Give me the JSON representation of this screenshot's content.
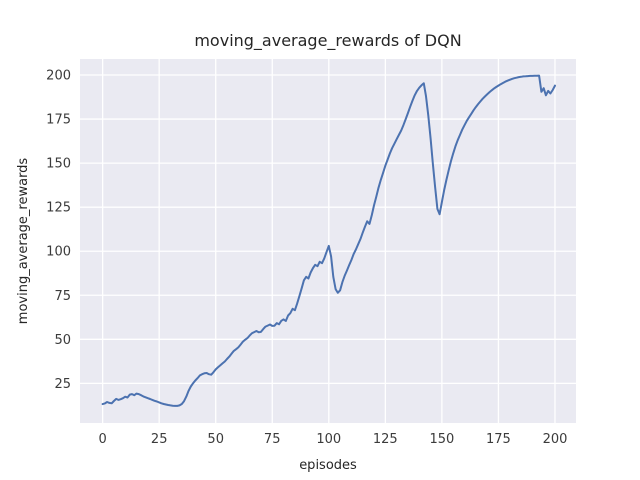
{
  "figure": {
    "background": "#ffffff"
  },
  "chart_data": {
    "type": "line",
    "title": "moving_average_rewards of DQN",
    "xlabel": "episodes",
    "ylabel": "moving_average_rewards",
    "xticks": [
      0,
      25,
      50,
      75,
      100,
      125,
      150,
      175,
      200
    ],
    "yticks": [
      25,
      50,
      75,
      100,
      125,
      150,
      175,
      200
    ],
    "xlim": [
      -10,
      209.3
    ],
    "ylim": [
      2.5,
      209.1
    ],
    "grid": true,
    "legend": "none",
    "style": {
      "plot_bg": "#eaeaf2",
      "grid_color": "#ffffff",
      "line_color": "#4c72b0",
      "line_width": 2,
      "title_color": "#262626",
      "tick_color": "#3b3b3b"
    },
    "series": [
      {
        "name": "moving_average_rewards",
        "points": [
          [
            0,
            13.2
          ],
          [
            1,
            13.6
          ],
          [
            2,
            14.4
          ],
          [
            3,
            13.9
          ],
          [
            4,
            13.7
          ],
          [
            5,
            15.0
          ],
          [
            6,
            16.2
          ],
          [
            7,
            15.6
          ],
          [
            8,
            16.0
          ],
          [
            9,
            16.6
          ],
          [
            10,
            17.4
          ],
          [
            11,
            17.0
          ],
          [
            12,
            18.6
          ],
          [
            13,
            18.9
          ],
          [
            14,
            18.3
          ],
          [
            15,
            19.2
          ],
          [
            16,
            18.9
          ],
          [
            17,
            18.3
          ],
          [
            18,
            17.6
          ],
          [
            19,
            17.1
          ],
          [
            20,
            16.6
          ],
          [
            21,
            16.1
          ],
          [
            22,
            15.6
          ],
          [
            23,
            15.1
          ],
          [
            24,
            14.7
          ],
          [
            25,
            14.2
          ],
          [
            26,
            13.7
          ],
          [
            27,
            13.3
          ],
          [
            28,
            13.0
          ],
          [
            29,
            12.7
          ],
          [
            30,
            12.5
          ],
          [
            31,
            12.3
          ],
          [
            32,
            12.2
          ],
          [
            33,
            12.2
          ],
          [
            34,
            12.5
          ],
          [
            35,
            13.3
          ],
          [
            36,
            14.9
          ],
          [
            37,
            17.5
          ],
          [
            38,
            20.8
          ],
          [
            39,
            23.2
          ],
          [
            40,
            25.1
          ],
          [
            41,
            26.6
          ],
          [
            42,
            28.0
          ],
          [
            43,
            29.5
          ],
          [
            44,
            30.2
          ],
          [
            45,
            30.7
          ],
          [
            46,
            30.9
          ],
          [
            47,
            30.2
          ],
          [
            48,
            29.9
          ],
          [
            49,
            31.3
          ],
          [
            50,
            32.9
          ],
          [
            51,
            34.1
          ],
          [
            52,
            35.2
          ],
          [
            53,
            36.3
          ],
          [
            54,
            37.4
          ],
          [
            55,
            38.8
          ],
          [
            56,
            40.2
          ],
          [
            57,
            41.8
          ],
          [
            58,
            43.4
          ],
          [
            59,
            44.4
          ],
          [
            60,
            45.4
          ],
          [
            61,
            47.0
          ],
          [
            62,
            48.6
          ],
          [
            63,
            49.7
          ],
          [
            64,
            50.7
          ],
          [
            65,
            52.1
          ],
          [
            66,
            53.4
          ],
          [
            67,
            54.1
          ],
          [
            68,
            54.7
          ],
          [
            69,
            54.0
          ],
          [
            70,
            54.2
          ],
          [
            71,
            55.8
          ],
          [
            72,
            57.2
          ],
          [
            73,
            57.8
          ],
          [
            74,
            58.4
          ],
          [
            75,
            57.6
          ],
          [
            76,
            57.7
          ],
          [
            77,
            59.2
          ],
          [
            78,
            58.5
          ],
          [
            79,
            60.5
          ],
          [
            80,
            61.3
          ],
          [
            81,
            60.4
          ],
          [
            82,
            63.5
          ],
          [
            83,
            64.8
          ],
          [
            84,
            67.3
          ],
          [
            85,
            66.5
          ],
          [
            86,
            70.2
          ],
          [
            87,
            74.5
          ],
          [
            88,
            79.0
          ],
          [
            89,
            83.5
          ],
          [
            90,
            85.5
          ],
          [
            91,
            84.5
          ],
          [
            92,
            88.0
          ],
          [
            93,
            90.5
          ],
          [
            94,
            92.3
          ],
          [
            95,
            91.5
          ],
          [
            96,
            94.0
          ],
          [
            97,
            93.2
          ],
          [
            98,
            96.0
          ],
          [
            99,
            99.5
          ],
          [
            100,
            103.0
          ],
          [
            101,
            97.0
          ],
          [
            102,
            85.5
          ],
          [
            103,
            78.5
          ],
          [
            104,
            76.4
          ],
          [
            105,
            77.8
          ],
          [
            106,
            82.5
          ],
          [
            107,
            86.0
          ],
          [
            108,
            89.0
          ],
          [
            109,
            92.0
          ],
          [
            110,
            95.0
          ],
          [
            111,
            98.5
          ],
          [
            112,
            101.0
          ],
          [
            113,
            104.0
          ],
          [
            114,
            107.0
          ],
          [
            115,
            110.5
          ],
          [
            116,
            114.0
          ],
          [
            117,
            117.0
          ],
          [
            118,
            115.5
          ],
          [
            119,
            120.5
          ],
          [
            120,
            126.0
          ],
          [
            121,
            131.0
          ],
          [
            122,
            136.0
          ],
          [
            123,
            140.5
          ],
          [
            124,
            144.5
          ],
          [
            125,
            148.5
          ],
          [
            126,
            152.0
          ],
          [
            127,
            155.5
          ],
          [
            128,
            158.5
          ],
          [
            129,
            161.0
          ],
          [
            130,
            163.5
          ],
          [
            131,
            166.0
          ],
          [
            132,
            168.5
          ],
          [
            133,
            171.5
          ],
          [
            134,
            175.0
          ],
          [
            135,
            178.5
          ],
          [
            136,
            182.0
          ],
          [
            137,
            185.5
          ],
          [
            138,
            188.5
          ],
          [
            139,
            191.0
          ],
          [
            140,
            192.8
          ],
          [
            141,
            194.2
          ],
          [
            142,
            195.3
          ],
          [
            143,
            188.0
          ],
          [
            144,
            177.0
          ],
          [
            145,
            164.0
          ],
          [
            146,
            150.0
          ],
          [
            147,
            136.5
          ],
          [
            148,
            124.0
          ],
          [
            149,
            121.0
          ],
          [
            150,
            128.0
          ],
          [
            151,
            134.5
          ],
          [
            152,
            140.5
          ],
          [
            153,
            146.0
          ],
          [
            154,
            151.0
          ],
          [
            155,
            155.5
          ],
          [
            156,
            159.5
          ],
          [
            157,
            163.0
          ],
          [
            158,
            166.0
          ],
          [
            159,
            169.0
          ],
          [
            160,
            171.5
          ],
          [
            161,
            174.0
          ],
          [
            162,
            176.0
          ],
          [
            163,
            178.0
          ],
          [
            164,
            180.0
          ],
          [
            165,
            181.8
          ],
          [
            166,
            183.5
          ],
          [
            167,
            185.0
          ],
          [
            168,
            186.5
          ],
          [
            169,
            187.8
          ],
          [
            170,
            189.0
          ],
          [
            171,
            190.2
          ],
          [
            172,
            191.3
          ],
          [
            173,
            192.3
          ],
          [
            174,
            193.2
          ],
          [
            175,
            194.0
          ],
          [
            176,
            194.8
          ],
          [
            177,
            195.5
          ],
          [
            178,
            196.2
          ],
          [
            179,
            196.8
          ],
          [
            180,
            197.3
          ],
          [
            181,
            197.8
          ],
          [
            182,
            198.2
          ],
          [
            183,
            198.5
          ],
          [
            184,
            198.8
          ],
          [
            185,
            199.0
          ],
          [
            186,
            199.2
          ],
          [
            187,
            199.3
          ],
          [
            188,
            199.4
          ],
          [
            189,
            199.5
          ],
          [
            190,
            199.5
          ],
          [
            191,
            199.6
          ],
          [
            192,
            199.6
          ],
          [
            193,
            199.7
          ],
          [
            194,
            190.5
          ],
          [
            195,
            192.5
          ],
          [
            196,
            188.5
          ],
          [
            197,
            191.0
          ],
          [
            198,
            189.5
          ],
          [
            199,
            191.5
          ],
          [
            200,
            194.0
          ]
        ]
      }
    ]
  }
}
